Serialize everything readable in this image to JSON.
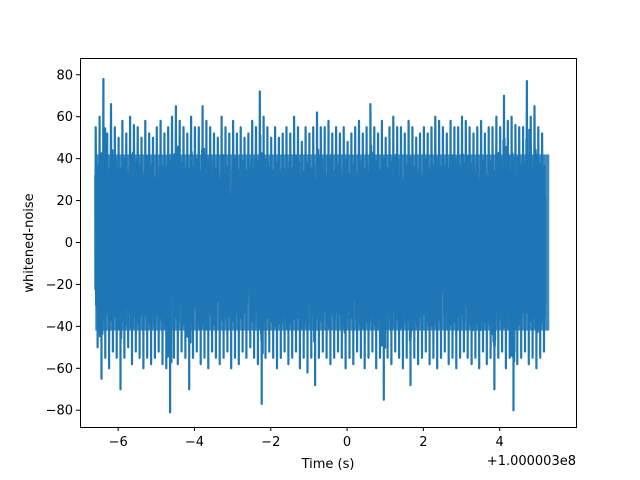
{
  "chart_data": {
    "type": "line",
    "title": "",
    "xlabel": "Time (s)",
    "ylabel": "whitened-noise",
    "x_offset_text": "+1.000003e8",
    "xlim": [
      -7.0,
      6.0
    ],
    "ylim": [
      -88,
      88
    ],
    "x_ticks": [
      -6,
      -4,
      -2,
      0,
      2,
      4
    ],
    "x_tick_labels": [
      "−6",
      "−4",
      "−2",
      "0",
      "2",
      "4"
    ],
    "y_ticks": [
      80,
      60,
      40,
      20,
      0,
      -20,
      -40,
      -60,
      -80
    ],
    "y_tick_labels": [
      "80",
      "60",
      "40",
      "20",
      "0",
      "−20",
      "−40",
      "−60",
      "−80"
    ],
    "grid": false,
    "legend": "none",
    "series_color": "#1f77b4",
    "series": [
      {
        "x": [
          -6.6,
          -6.5,
          -6.4,
          -6.3,
          -6.2,
          -6.1,
          -6.0,
          -5.9,
          -5.8,
          -5.7,
          -5.6,
          -5.5,
          -5.4,
          -5.3,
          -5.2,
          -5.1,
          -5.0,
          -4.9,
          -4.8,
          -4.7,
          -4.6,
          -4.5,
          -4.4,
          -4.3,
          -4.2,
          -4.1,
          -4.0,
          -3.9,
          -3.8,
          -3.7,
          -3.6,
          -3.5,
          -3.4,
          -3.3,
          -3.2,
          -3.1,
          -3.0,
          -2.9,
          -2.8,
          -2.7,
          -2.6,
          -2.5,
          -2.4,
          -2.3,
          -2.2,
          -2.1,
          -2.0,
          -1.9,
          -1.8,
          -1.7,
          -1.6,
          -1.5,
          -1.4,
          -1.3,
          -1.2,
          -1.1,
          -1.0,
          -0.9,
          -0.8,
          -0.7,
          -0.6,
          -0.5,
          -0.4,
          -0.3,
          -0.2,
          -0.1,
          0.0,
          0.1,
          0.2,
          0.3,
          0.4,
          0.5,
          0.6,
          0.7,
          0.8,
          0.9,
          1.0,
          1.1,
          1.2,
          1.3,
          1.4,
          1.5,
          1.6,
          1.7,
          1.8,
          1.9,
          2.0,
          2.1,
          2.2,
          2.3,
          2.4,
          2.5,
          2.6,
          2.7,
          2.8,
          2.9,
          3.0,
          3.1,
          3.2,
          3.3,
          3.4,
          3.5,
          3.6,
          3.7,
          3.8,
          3.9,
          4.0,
          4.1,
          4.2,
          4.3,
          4.4,
          4.5,
          4.6,
          4.7,
          4.8,
          4.9,
          5.0,
          5.1,
          5.2,
          5.3
        ],
        "max": [
          55,
          60,
          78,
          52,
          66,
          55,
          50,
          58,
          52,
          60,
          56,
          55,
          50,
          58,
          52,
          50,
          55,
          58,
          52,
          55,
          60,
          65,
          58,
          55,
          52,
          60,
          55,
          55,
          65,
          58,
          55,
          52,
          50,
          60,
          55,
          52,
          58,
          52,
          55,
          50,
          52,
          58,
          55,
          72,
          60,
          55,
          50,
          55,
          50,
          52,
          55,
          52,
          60,
          55,
          48,
          55,
          52,
          55,
          62,
          55,
          55,
          58,
          52,
          55,
          52,
          55,
          48,
          52,
          55,
          58,
          52,
          55,
          66,
          55,
          52,
          58,
          50,
          55,
          60,
          55,
          55,
          52,
          58,
          55,
          50,
          52,
          55,
          52,
          55,
          60,
          58,
          55,
          52,
          58,
          55,
          55,
          60,
          58,
          55,
          52,
          55,
          58,
          52,
          55,
          55,
          60,
          55,
          70,
          58,
          60,
          56,
          55,
          55,
          77,
          60,
          65,
          55,
          52
        ],
        "min": [
          -50,
          -65,
          -55,
          -60,
          -52,
          -55,
          -70,
          -55,
          -50,
          -58,
          -52,
          -55,
          -60,
          -55,
          -58,
          -55,
          -52,
          -58,
          -60,
          -81,
          -55,
          -58,
          -52,
          -55,
          -70,
          -55,
          -52,
          -58,
          -55,
          -60,
          -52,
          -55,
          -58,
          -55,
          -52,
          -60,
          -55,
          -58,
          -52,
          -55,
          -50,
          -55,
          -58,
          -77,
          -55,
          -52,
          -55,
          -60,
          -55,
          -52,
          -58,
          -55,
          -52,
          -60,
          -55,
          -62,
          -55,
          -68,
          -55,
          -52,
          -55,
          -58,
          -55,
          -52,
          -55,
          -60,
          -55,
          -58,
          -52,
          -55,
          -60,
          -55,
          -52,
          -60,
          -55,
          -75,
          -55,
          -58,
          -52,
          -55,
          -60,
          -55,
          -68,
          -55,
          -58,
          -55,
          -52,
          -58,
          -55,
          -60,
          -55,
          -52,
          -58,
          -55,
          -60,
          -55,
          -52,
          -55,
          -58,
          -55,
          -60,
          -52,
          -58,
          -55,
          -70,
          -55,
          -52,
          -60,
          -55,
          -80,
          -58,
          -55,
          -52,
          -58,
          -55,
          -60,
          -55,
          -52
        ]
      }
    ]
  }
}
